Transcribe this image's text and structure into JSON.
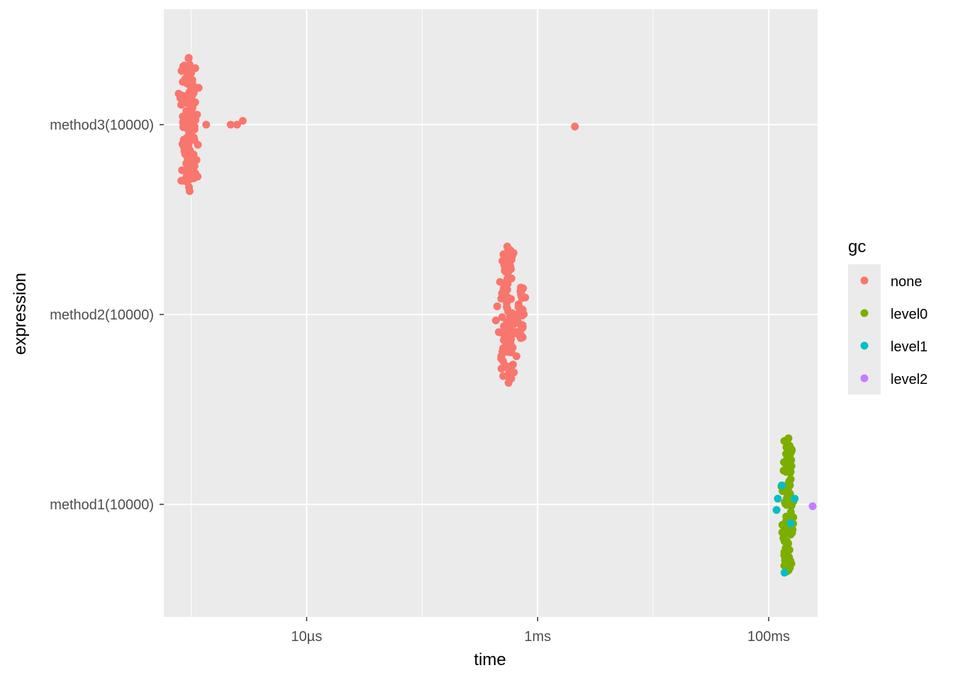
{
  "chart_data": {
    "type": "scatter",
    "xlabel": "time",
    "ylabel": "expression",
    "x_scale": "log10",
    "x_unit": "seconds",
    "x_ticks": [
      {
        "value": 1e-05,
        "label": "10µs"
      },
      {
        "value": 0.001,
        "label": "1ms"
      },
      {
        "value": 0.1,
        "label": "100ms"
      }
    ],
    "xlim": [
      5.8e-07,
      0.265
    ],
    "categories": [
      "method1(10000)",
      "method2(10000)",
      "method3(10000)"
    ],
    "grid": true,
    "background": "#ebebeb",
    "legend": {
      "title": "gc",
      "position": "right",
      "entries": [
        {
          "label": "none",
          "color": "#F8766D"
        },
        {
          "label": "level0",
          "color": "#7CAE00"
        },
        {
          "label": "level1",
          "color": "#00BFC4"
        },
        {
          "label": "level2",
          "color": "#C77CFF"
        }
      ]
    },
    "series": [
      {
        "expression": "method3(10000)",
        "clusters": [
          {
            "gc": "none",
            "center": 9.6e-07,
            "spread": 0.06,
            "count": 140,
            "half_width": 0.37
          }
        ],
        "points": [
          {
            "gc": "none",
            "x": 1.35e-06,
            "offset": 0.0
          },
          {
            "gc": "none",
            "x": 2.2e-06,
            "offset": 0.0
          },
          {
            "gc": "none",
            "x": 2.5e-06,
            "offset": 0.0
          },
          {
            "gc": "none",
            "x": 2.8e-06,
            "offset": 0.02
          },
          {
            "gc": "none",
            "x": 0.0021,
            "offset": -0.01
          }
        ]
      },
      {
        "expression": "method2(10000)",
        "clusters": [
          {
            "gc": "none",
            "center": 0.00055,
            "spread": 0.06,
            "count": 110,
            "half_width": 0.37
          },
          {
            "gc": "none",
            "center": 0.00072,
            "spread": 0.035,
            "count": 30,
            "half_width": 0.15
          }
        ],
        "points": []
      },
      {
        "expression": "method1(10000)",
        "clusters": [
          {
            "gc": "level0",
            "center": 0.145,
            "spread": 0.04,
            "count": 110,
            "half_width": 0.37
          }
        ],
        "points": [
          {
            "gc": "level1",
            "x": 0.12,
            "offset": 0.03
          },
          {
            "gc": "level1",
            "x": 0.117,
            "offset": -0.03
          },
          {
            "gc": "level1",
            "x": 0.155,
            "offset": -0.1
          },
          {
            "gc": "level1",
            "x": 0.168,
            "offset": 0.03
          },
          {
            "gc": "level1",
            "x": 0.137,
            "offset": -0.36
          },
          {
            "gc": "level1",
            "x": 0.13,
            "offset": 0.1
          },
          {
            "gc": "level2",
            "x": 0.24,
            "offset": -0.01
          }
        ]
      }
    ]
  }
}
